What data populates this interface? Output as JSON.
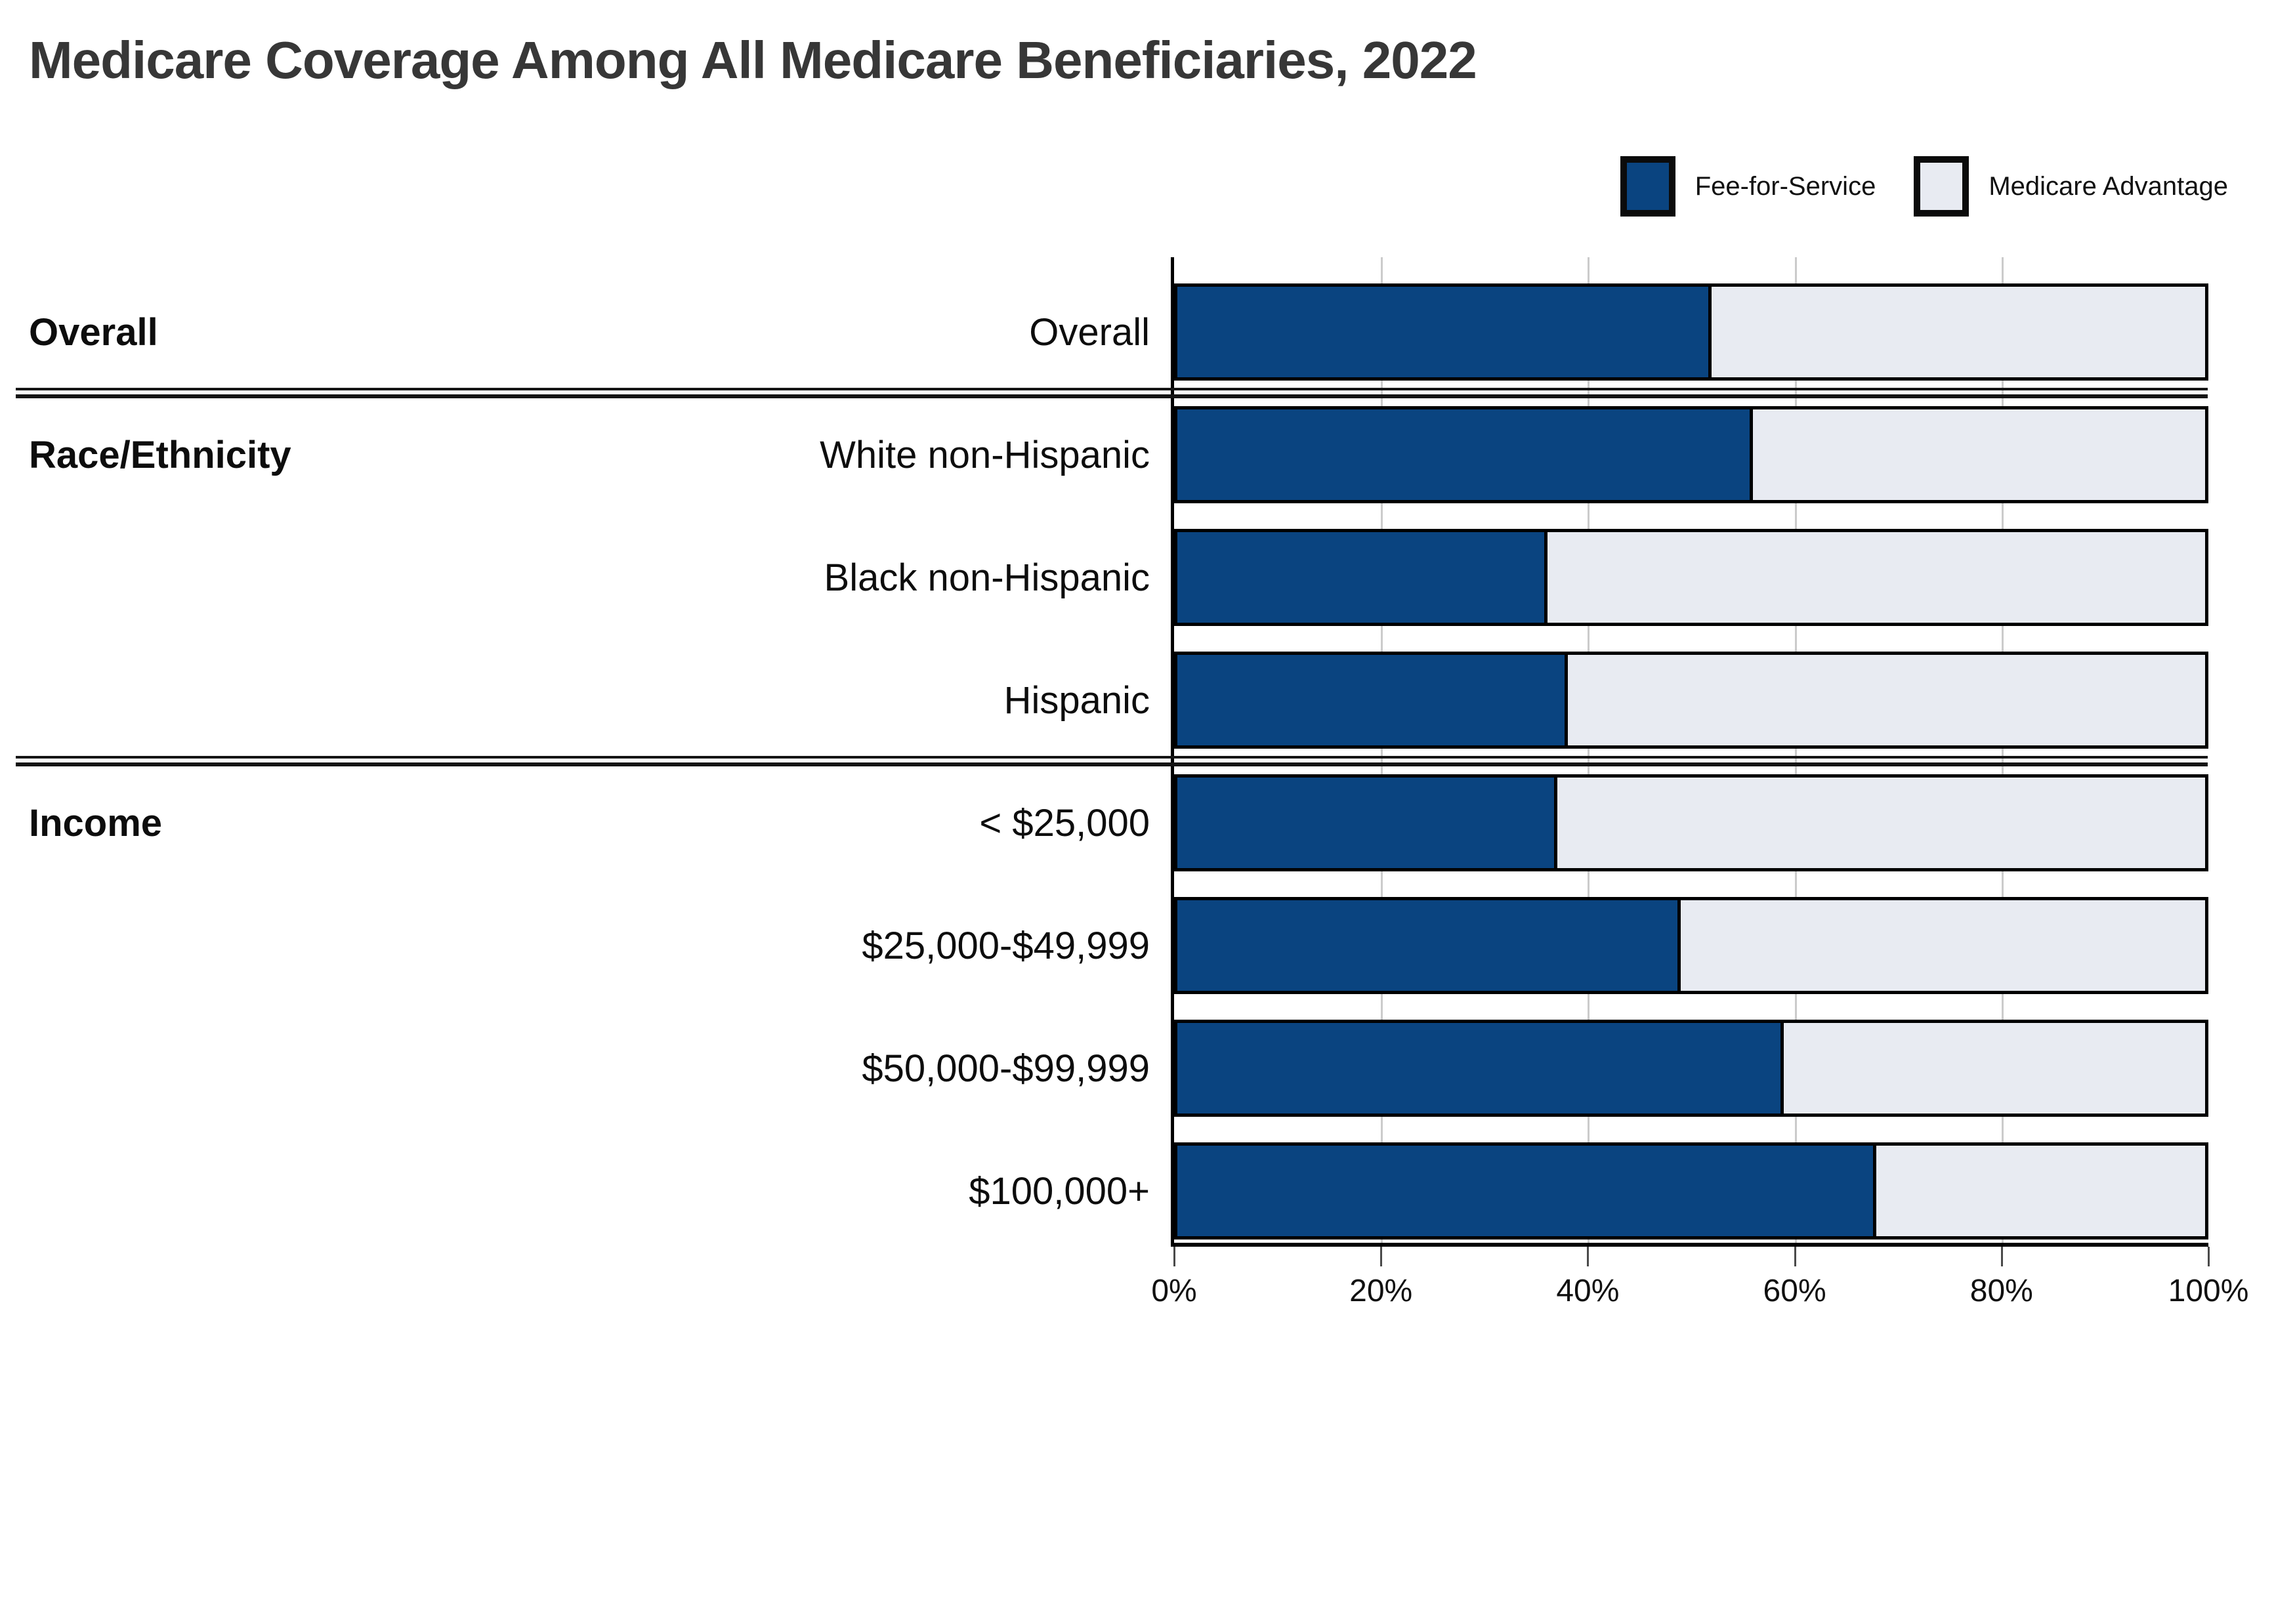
{
  "title": "Medicare Coverage Among All Medicare Beneficiaries, 2022",
  "colors": {
    "fee_for_service": "#0A4480",
    "medicare_advantage": "#E8EBF2",
    "bar_border": "#000000",
    "gridline": "#CBCBCB",
    "tick": "#4A4A4A",
    "title_text": "#373737",
    "label_text": "#0D0D0D"
  },
  "legend": {
    "items": [
      {
        "label": "Fee-for-Service",
        "color": "#0A4480"
      },
      {
        "label": "Medicare Advantage",
        "color": "#E8EBF2"
      }
    ]
  },
  "chart_data": {
    "type": "bar",
    "orientation": "horizontal",
    "stacked": true,
    "title": "Medicare Coverage Among All Medicare Beneficiaries, 2022",
    "grid": true,
    "legend_position": "top-right",
    "x_axis": {
      "min": 0,
      "max": 100,
      "tick_values": [
        0,
        20,
        40,
        60,
        80,
        100
      ],
      "tick_labels": [
        "0%",
        "20%",
        "40%",
        "60%",
        "80%",
        "100%"
      ]
    },
    "groups": [
      {
        "label": "Overall",
        "rows": [
          0
        ]
      },
      {
        "label": "Race/Ethnicity",
        "rows": [
          1,
          2,
          3
        ]
      },
      {
        "label": "Income",
        "rows": [
          4,
          5,
          6,
          7
        ]
      }
    ],
    "categories": [
      "Overall",
      "White non-Hispanic",
      "Black non-Hispanic",
      "Hispanic",
      "< $25,000",
      "$25,000-$49,999",
      "$50,000-$99,999",
      "$100,000+"
    ],
    "series": [
      {
        "name": "Fee-for-Service",
        "values": [
          52,
          56,
          36,
          38,
          37,
          49,
          59,
          68
        ]
      },
      {
        "name": "Medicare Advantage",
        "values": [
          48,
          44,
          64,
          62,
          63,
          51,
          41,
          32
        ]
      }
    ]
  }
}
